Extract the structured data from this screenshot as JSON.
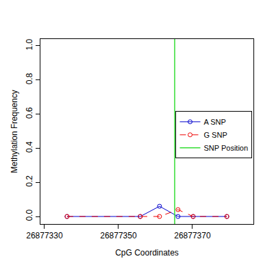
{
  "chart_data": {
    "type": "line",
    "x_label": "CpG Coordinates",
    "y_label": "Methylation Frequency",
    "x": [
      26877336.1,
      26877355.9,
      26877361.1,
      26877366.1,
      26877370.2,
      26877379.3
    ],
    "series": [
      {
        "name": "A SNP",
        "color": "#0000cc",
        "marker": "circle-open",
        "line_style": "solid",
        "values": [
          0,
          0,
          0.06,
          0,
          0,
          0
        ]
      },
      {
        "name": "G SNP",
        "color": "#ee0000",
        "marker": "circle-open",
        "line_style": "dashed",
        "values": [
          0,
          0,
          0,
          0.04,
          0,
          0
        ]
      }
    ],
    "snp_position": {
      "name": "SNP Position",
      "color": "#33dd33",
      "x": 26877365.2
    },
    "xlim": [
      26877328.9,
      26877386.5
    ],
    "xticks": [
      26877330,
      26877350,
      26877370
    ],
    "ylim": [
      -0.044,
      1.04
    ],
    "yticks": [
      {
        "value": 0,
        "label": "0.0"
      },
      0.2,
      0.4,
      0.6,
      0.8,
      {
        "value": 1,
        "label": "1.0"
      }
    ],
    "grid": false,
    "legend": "right"
  }
}
